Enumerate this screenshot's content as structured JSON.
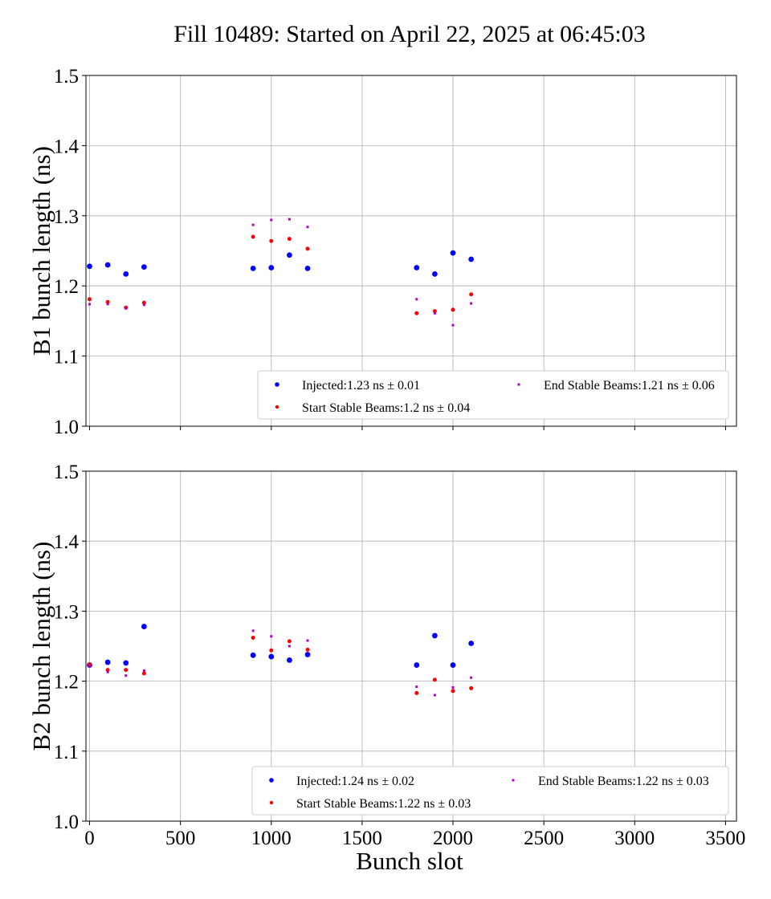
{
  "title": "Fill 10489: Started on April 22, 2025 at 06:45:03",
  "chart_data": [
    {
      "type": "scatter",
      "ylabel": "B1 bunch length (ns)",
      "xlabel": "",
      "xlim": [
        -20,
        3560
      ],
      "ylim": [
        1.0,
        1.5
      ],
      "x_ticks": [
        0,
        500,
        1000,
        1500,
        2000,
        2500,
        3000,
        3500
      ],
      "y_ticks": [
        1.0,
        1.1,
        1.2,
        1.3,
        1.4,
        1.5
      ],
      "grid": true,
      "legend_position": "lower-right",
      "series": [
        {
          "name": "Injected:1.23 ns ± 0.01",
          "color": "#0000ff",
          "marker": "large-dot",
          "x": [
            0,
            100,
            200,
            300,
            900,
            1000,
            1100,
            1200,
            1800,
            1900,
            2000,
            2100
          ],
          "y": [
            1.228,
            1.23,
            1.217,
            1.227,
            1.225,
            1.226,
            1.244,
            1.225,
            1.226,
            1.217,
            1.247,
            1.238
          ]
        },
        {
          "name": "Start Stable Beams:1.2 ns ± 0.04",
          "color": "#ff0000",
          "marker": "dot",
          "x": [
            0,
            100,
            200,
            300,
            900,
            1000,
            1100,
            1200,
            1800,
            1900,
            2000,
            2100
          ],
          "y": [
            1.181,
            1.177,
            1.169,
            1.176,
            1.27,
            1.264,
            1.267,
            1.253,
            1.161,
            1.164,
            1.166,
            1.188
          ]
        },
        {
          "name": "End Stable Beams:1.21 ns ± 0.06",
          "color": "#b000c8",
          "marker": "small-dot",
          "x": [
            0,
            100,
            200,
            300,
            900,
            1000,
            1100,
            1200,
            1800,
            1900,
            2000,
            2100
          ],
          "y": [
            1.174,
            1.174,
            1.168,
            1.173,
            1.287,
            1.294,
            1.295,
            1.284,
            1.181,
            1.161,
            1.144,
            1.175
          ]
        }
      ]
    },
    {
      "type": "scatter",
      "ylabel": "B2 bunch length (ns)",
      "xlabel": "Bunch slot",
      "xlim": [
        -20,
        3560
      ],
      "ylim": [
        1.0,
        1.5
      ],
      "x_ticks": [
        0,
        500,
        1000,
        1500,
        2000,
        2500,
        3000,
        3500
      ],
      "y_ticks": [
        1.0,
        1.1,
        1.2,
        1.3,
        1.4,
        1.5
      ],
      "grid": true,
      "legend_position": "lower-right",
      "series": [
        {
          "name": "Injected:1.24 ns ± 0.02",
          "color": "#0000ff",
          "marker": "large-dot",
          "x": [
            0,
            100,
            200,
            300,
            900,
            1000,
            1100,
            1200,
            1800,
            1900,
            2000,
            2100
          ],
          "y": [
            1.223,
            1.227,
            1.226,
            1.278,
            1.237,
            1.235,
            1.23,
            1.238,
            1.223,
            1.265,
            1.223,
            1.254
          ]
        },
        {
          "name": "Start Stable Beams:1.22 ns ± 0.03",
          "color": "#ff0000",
          "marker": "dot",
          "x": [
            0,
            100,
            200,
            300,
            900,
            1000,
            1100,
            1200,
            1800,
            1900,
            2000,
            2100
          ],
          "y": [
            1.224,
            1.216,
            1.216,
            1.211,
            1.262,
            1.244,
            1.257,
            1.245,
            1.183,
            1.202,
            1.186,
            1.19
          ]
        },
        {
          "name": "End Stable Beams:1.22 ns ± 0.03",
          "color": "#b000c8",
          "marker": "small-dot",
          "x": [
            0,
            100,
            200,
            300,
            900,
            1000,
            1100,
            1200,
            1800,
            1900,
            2000,
            2100
          ],
          "y": [
            1.221,
            1.213,
            1.208,
            1.215,
            1.272,
            1.264,
            1.25,
            1.258,
            1.192,
            1.18,
            1.191,
            1.205
          ]
        }
      ]
    }
  ]
}
